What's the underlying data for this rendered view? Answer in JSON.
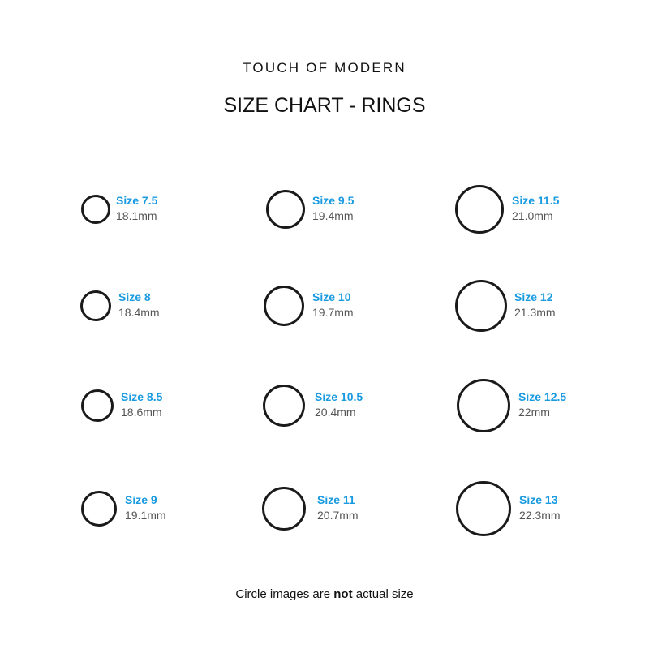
{
  "brand": "TOUCH OF MODERN",
  "title": "SIZE CHART - RINGS",
  "accent_color": "#1a9be0",
  "rings": [
    {
      "size": "Size 7.5",
      "mm": "18.1mm"
    },
    {
      "size": "Size 8",
      "mm": "18.4mm"
    },
    {
      "size": "Size 8.5",
      "mm": "18.6mm"
    },
    {
      "size": "Size 9",
      "mm": "19.1mm"
    },
    {
      "size": "Size 9.5",
      "mm": "19.4mm"
    },
    {
      "size": "Size 10",
      "mm": "19.7mm"
    },
    {
      "size": "Size 10.5",
      "mm": "20.4mm"
    },
    {
      "size": "Size 11",
      "mm": "20.7mm"
    },
    {
      "size": "Size 11.5",
      "mm": "21.0mm"
    },
    {
      "size": "Size 12",
      "mm": "21.3mm"
    },
    {
      "size": "Size 12.5",
      "mm": "22mm"
    },
    {
      "size": "Size 13",
      "mm": "22.3mm"
    }
  ],
  "footer": {
    "before": "Circle images are ",
    "bold": "not",
    "after": " actual size"
  }
}
